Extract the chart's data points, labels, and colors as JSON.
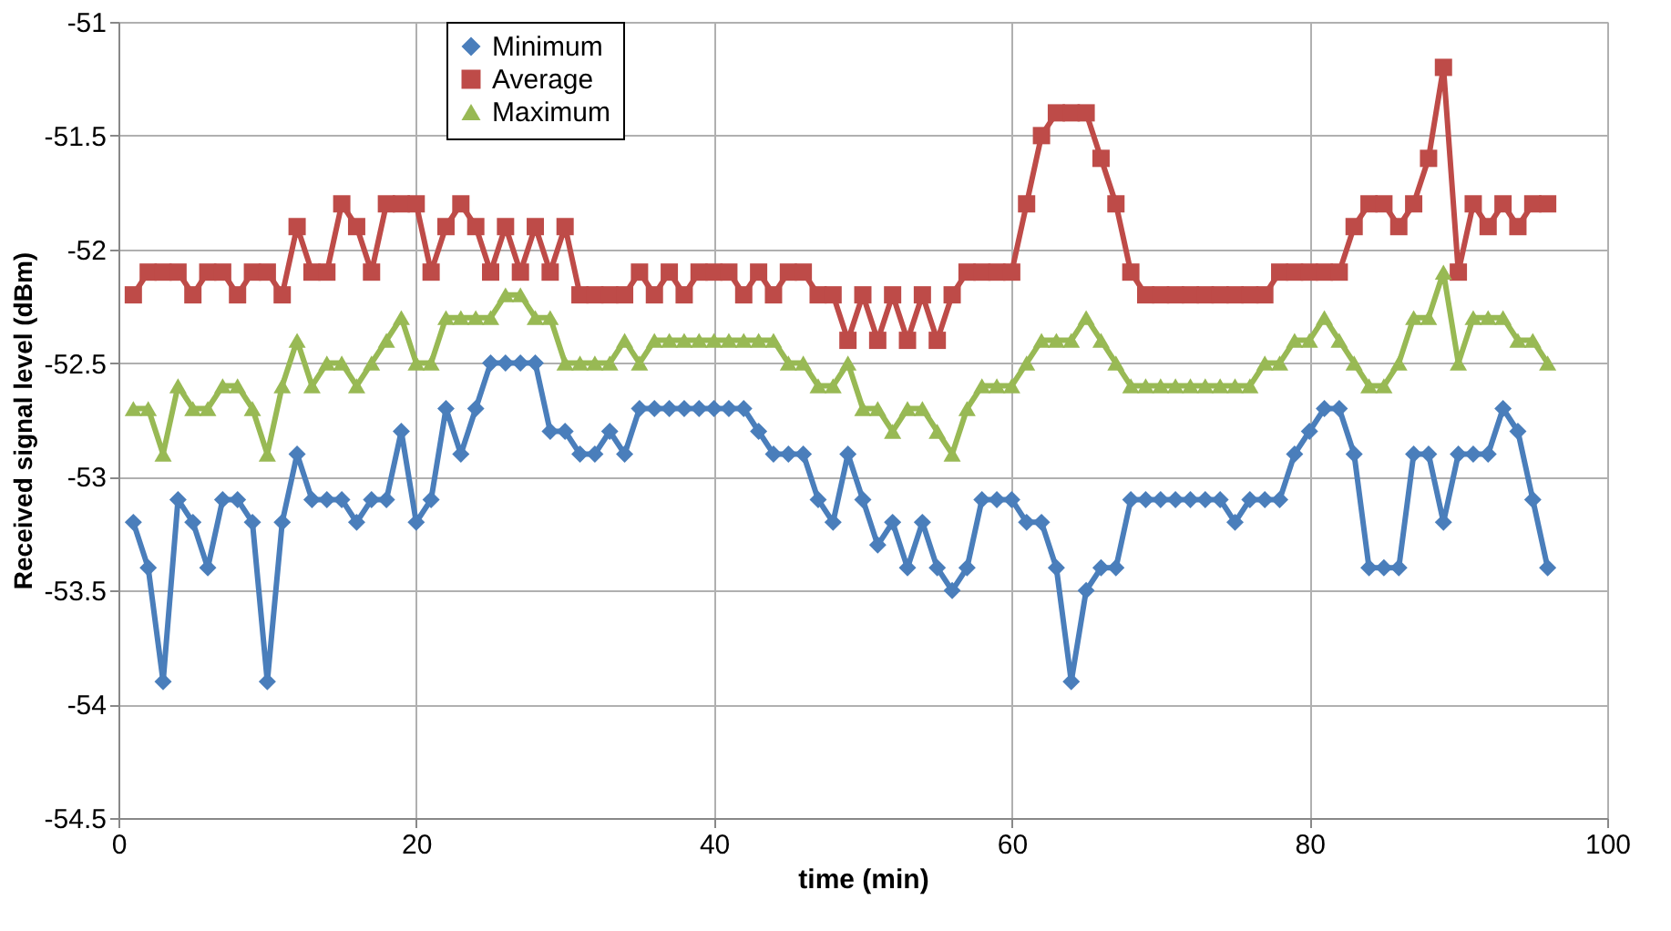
{
  "chart_data": {
    "type": "line",
    "xlabel": "time (min)",
    "ylabel": "Received signal level (dBm)",
    "x": [
      1,
      2,
      3,
      4,
      5,
      6,
      7,
      8,
      9,
      10,
      11,
      12,
      13,
      14,
      15,
      16,
      17,
      18,
      19,
      20,
      21,
      22,
      23,
      24,
      25,
      26,
      27,
      28,
      29,
      30,
      31,
      32,
      33,
      34,
      35,
      36,
      37,
      38,
      39,
      40,
      41,
      42,
      43,
      44,
      45,
      46,
      47,
      48,
      49,
      50,
      51,
      52,
      53,
      54,
      55,
      56,
      57,
      58,
      59,
      60,
      61,
      62,
      63,
      64,
      65,
      66,
      67,
      68,
      69,
      70,
      71,
      72,
      73,
      74,
      75,
      76,
      77,
      78,
      79,
      80,
      81,
      82,
      83,
      84,
      85,
      86,
      87,
      88,
      89,
      90,
      91,
      92,
      93,
      94,
      95,
      96
    ],
    "series": [
      {
        "name": "Minimum",
        "color": "#4a7ebb",
        "marker": "diamond",
        "values": [
          -53.2,
          -53.4,
          -53.9,
          -53.1,
          -53.2,
          -53.4,
          -53.1,
          -53.1,
          -53.2,
          -53.9,
          -53.2,
          -52.9,
          -53.1,
          -53.1,
          -53.1,
          -53.2,
          -53.1,
          -53.1,
          -52.8,
          -53.2,
          -53.1,
          -52.7,
          -52.9,
          -52.7,
          -52.5,
          -52.5,
          -52.5,
          -52.5,
          -52.8,
          -52.8,
          -52.9,
          -52.9,
          -52.8,
          -52.9,
          -52.7,
          -52.7,
          -52.7,
          -52.7,
          -52.7,
          -52.7,
          -52.7,
          -52.7,
          -52.8,
          -52.9,
          -52.9,
          -52.9,
          -53.1,
          -53.2,
          -52.9,
          -53.1,
          -53.3,
          -53.2,
          -53.4,
          -53.2,
          -53.4,
          -53.5,
          -53.4,
          -53.1,
          -53.1,
          -53.1,
          -53.2,
          -53.2,
          -53.4,
          -53.9,
          -53.5,
          -53.4,
          -53.4,
          -53.1,
          -53.1,
          -53.1,
          -53.1,
          -53.1,
          -53.1,
          -53.1,
          -53.2,
          -53.1,
          -53.1,
          -53.1,
          -52.9,
          -52.8,
          -52.7,
          -52.7,
          -52.9,
          -53.4,
          -53.4,
          -53.4,
          -52.9,
          -52.9,
          -53.2,
          -52.9,
          -52.9,
          -52.9,
          -52.7,
          -52.8,
          -53.1,
          -53.4
        ]
      },
      {
        "name": "Average",
        "color": "#be4b48",
        "marker": "square",
        "values": [
          -52.2,
          -52.1,
          -52.1,
          -52.1,
          -52.2,
          -52.1,
          -52.1,
          -52.2,
          -52.1,
          -52.1,
          -52.2,
          -51.9,
          -52.1,
          -52.1,
          -51.8,
          -51.9,
          -52.1,
          -51.8,
          -51.8,
          -51.8,
          -52.1,
          -51.9,
          -51.8,
          -51.9,
          -52.1,
          -51.9,
          -52.1,
          -51.9,
          -52.1,
          -51.9,
          -52.2,
          -52.2,
          -52.2,
          -52.2,
          -52.1,
          -52.2,
          -52.1,
          -52.2,
          -52.1,
          -52.1,
          -52.1,
          -52.2,
          -52.1,
          -52.2,
          -52.1,
          -52.1,
          -52.2,
          -52.2,
          -52.4,
          -52.2,
          -52.4,
          -52.2,
          -52.4,
          -52.2,
          -52.4,
          -52.2,
          -52.1,
          -52.1,
          -52.1,
          -52.1,
          -51.8,
          -51.5,
          -51.4,
          -51.4,
          -51.4,
          -51.6,
          -51.8,
          -52.1,
          -52.2,
          -52.2,
          -52.2,
          -52.2,
          -52.2,
          -52.2,
          -52.2,
          -52.2,
          -52.2,
          -52.1,
          -52.1,
          -52.1,
          -52.1,
          -52.1,
          -51.9,
          -51.8,
          -51.8,
          -51.9,
          -51.8,
          -51.6,
          -51.2,
          -52.1,
          -51.8,
          -51.9,
          -51.8,
          -51.9,
          -51.8,
          -51.8
        ]
      },
      {
        "name": "Maximum",
        "color": "#98b954",
        "marker": "triangle",
        "values": [
          -52.7,
          -52.7,
          -52.9,
          -52.6,
          -52.7,
          -52.7,
          -52.6,
          -52.6,
          -52.7,
          -52.9,
          -52.6,
          -52.4,
          -52.6,
          -52.5,
          -52.5,
          -52.6,
          -52.5,
          -52.4,
          -52.3,
          -52.5,
          -52.5,
          -52.3,
          -52.3,
          -52.3,
          -52.3,
          -52.2,
          -52.2,
          -52.3,
          -52.3,
          -52.5,
          -52.5,
          -52.5,
          -52.5,
          -52.4,
          -52.5,
          -52.4,
          -52.4,
          -52.4,
          -52.4,
          -52.4,
          -52.4,
          -52.4,
          -52.4,
          -52.4,
          -52.5,
          -52.5,
          -52.6,
          -52.6,
          -52.5,
          -52.7,
          -52.7,
          -52.8,
          -52.7,
          -52.7,
          -52.8,
          -52.9,
          -52.7,
          -52.6,
          -52.6,
          -52.6,
          -52.5,
          -52.4,
          -52.4,
          -52.4,
          -52.3,
          -52.4,
          -52.5,
          -52.6,
          -52.6,
          -52.6,
          -52.6,
          -52.6,
          -52.6,
          -52.6,
          -52.6,
          -52.6,
          -52.5,
          -52.5,
          -52.4,
          -52.4,
          -52.3,
          -52.4,
          -52.5,
          -52.6,
          -52.6,
          -52.5,
          -52.3,
          -52.3,
          -52.1,
          -52.5,
          -52.3,
          -52.3,
          -52.3,
          -52.4,
          -52.4,
          -52.5
        ]
      }
    ],
    "xlim": [
      0,
      100
    ],
    "xticks": [
      0,
      20,
      40,
      60,
      80,
      100
    ],
    "ylim": [
      -54.5,
      -51
    ],
    "yticks": [
      -54.5,
      -54,
      -53.5,
      -53,
      -52.5,
      -52,
      -51.5,
      -51
    ],
    "grid": true,
    "legend": "top",
    "line_style": "solid"
  }
}
